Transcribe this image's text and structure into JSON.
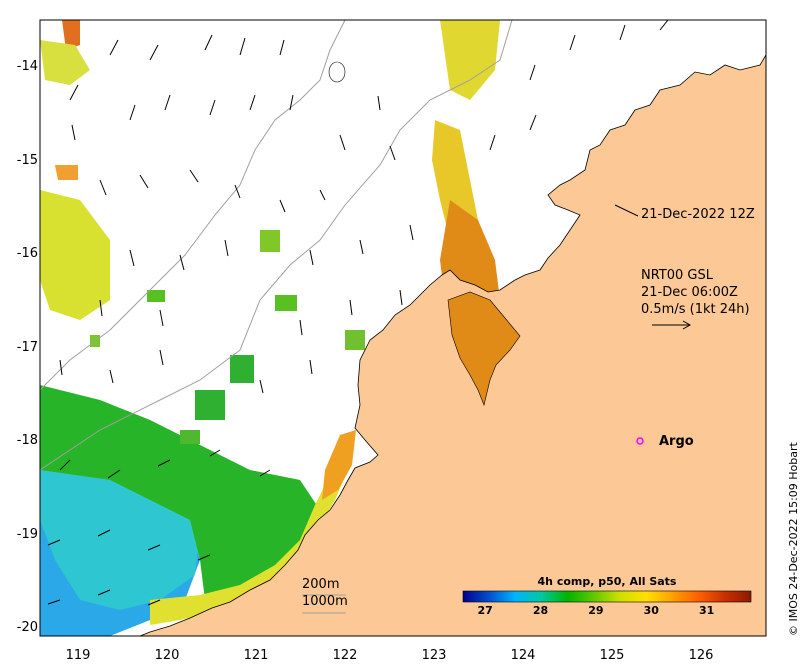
{
  "map": {
    "lat_ticks": [
      "-14",
      "-15",
      "-16",
      "-17",
      "-18",
      "-19",
      "-20"
    ],
    "lon_ticks": [
      "119",
      "120",
      "121",
      "122",
      "123",
      "124",
      "125",
      "126"
    ],
    "lat_range": [
      -20.1,
      -13.5
    ],
    "lon_range": [
      118.6,
      126.8
    ],
    "colors": {
      "land": "#fcc896",
      "ocean_nodata": "#ffffff",
      "gsl_arrow": "#000000"
    }
  },
  "annotations": {
    "date_label": "21-Dec-2022 12Z",
    "gsl_line1": "NRT00 GSL",
    "gsl_line2": "21-Dec 06:00Z",
    "gsl_line3": "0.5m/s (1kt 24h)",
    "isobath_200": "200m",
    "isobath_1000": "1000m",
    "argo_label": "Argo",
    "argo_lat": -18.0,
    "argo_lon": 125.3,
    "argo_color": "#ff00ff"
  },
  "colorbar": {
    "title": "4h comp, p50, All Sats",
    "ticks": [
      "27",
      "28",
      "29",
      "30",
      "31"
    ],
    "range": [
      26.6,
      31.8
    ],
    "colors": [
      "#00008b",
      "#0050d0",
      "#00b4ff",
      "#00c8a0",
      "#00b400",
      "#60c800",
      "#d0e000",
      "#ffe000",
      "#ffa000",
      "#ff6000",
      "#c83000",
      "#8b1a00"
    ]
  },
  "credit": "© IMOS 24-Dec-2022 15:09 Hobart"
}
